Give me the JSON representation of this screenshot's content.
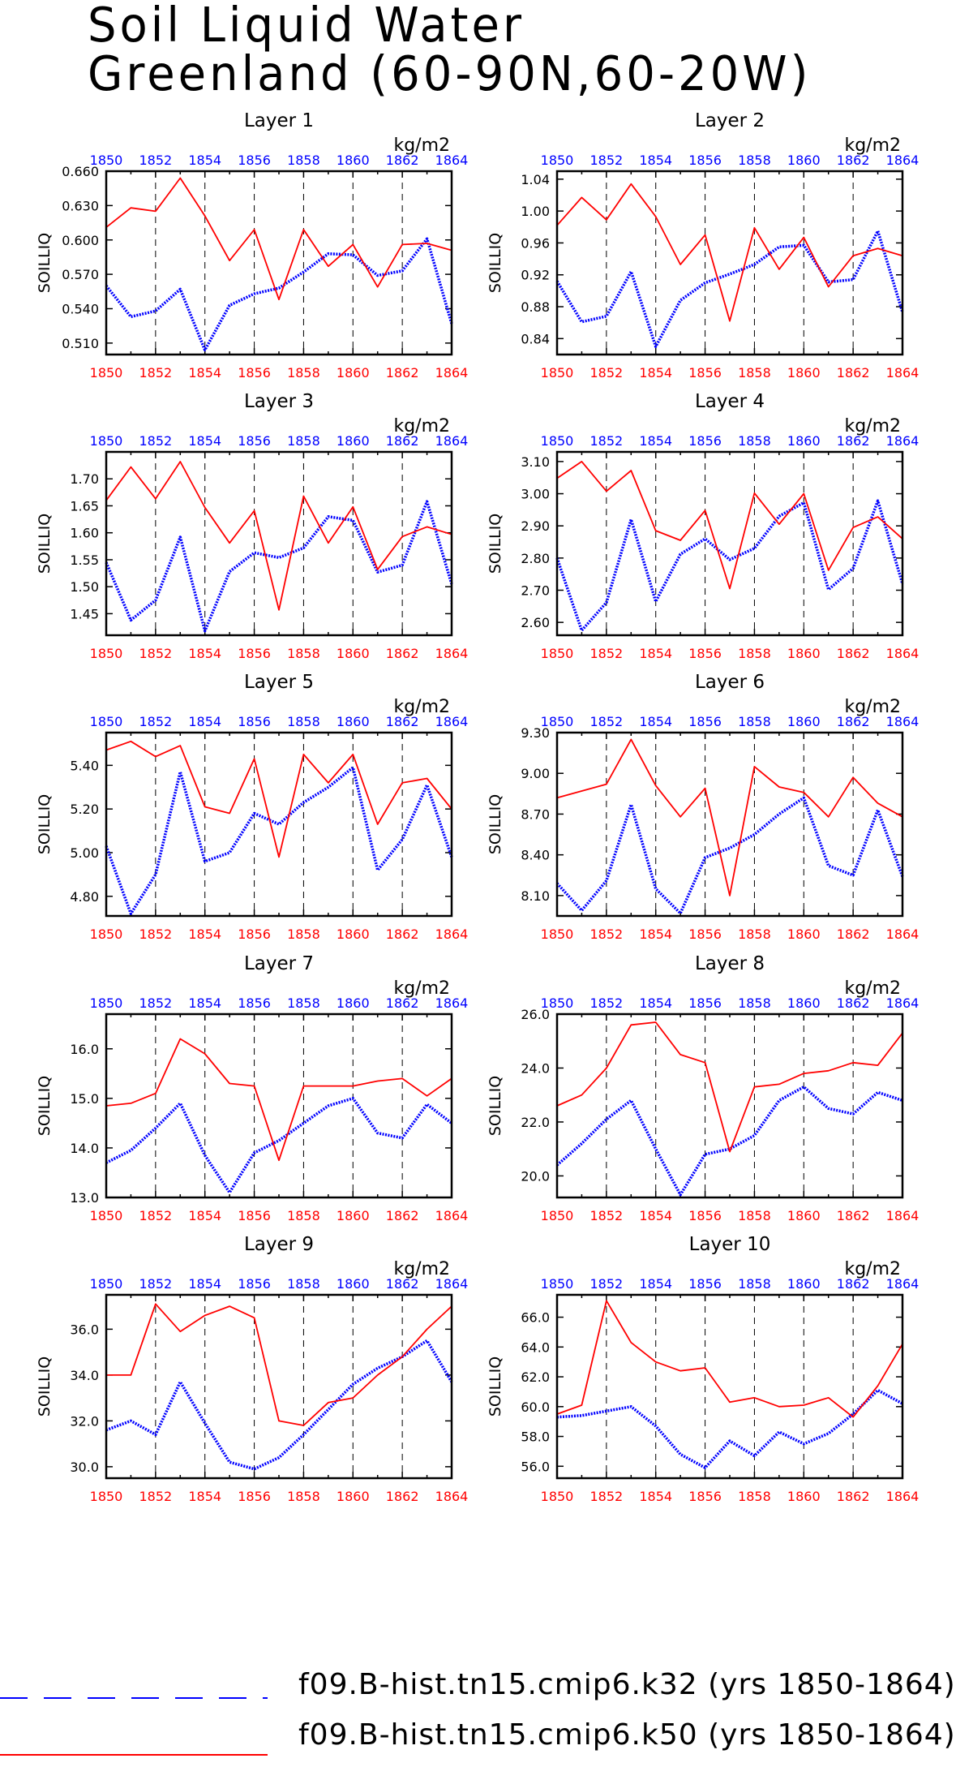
{
  "title": [
    "Soil Liquid Water",
    "Greenland (60-90N,60-20W)"
  ],
  "units": "kg/m2",
  "legend": [
    {
      "label": "f09.B-hist.tn15.cmip6.k32 (yrs 1850-1864)",
      "color": "#0000ff",
      "style": "dashed"
    },
    {
      "label": "f09.B-hist.tn15.cmip6.k50 (yrs 1850-1864)",
      "color": "#ff0000",
      "style": "solid"
    }
  ],
  "colors": {
    "blue_series": "#0000ff",
    "red_series": "#ff0000",
    "bottom_tick_labels": "#ff0000",
    "top_tick_labels": "#0000ff"
  },
  "chart_data": [
    {
      "type": "line",
      "title": "Layer 1",
      "ylabel": "SOILLIQ",
      "units": "kg/m2",
      "x": [
        1850,
        1851,
        1852,
        1853,
        1854,
        1855,
        1856,
        1857,
        1858,
        1859,
        1860,
        1861,
        1862,
        1863,
        1864
      ],
      "xticks": [
        1850,
        1852,
        1854,
        1856,
        1858,
        1860,
        1862,
        1864
      ],
      "xlim": [
        1850,
        1864
      ],
      "ylim": [
        0.5,
        0.66
      ],
      "yticks": [
        0.51,
        0.54,
        0.57,
        0.6,
        0.63,
        0.66
      ],
      "ytick_labels": [
        "0.510",
        "0.540",
        "0.570",
        "0.600",
        "0.630",
        "0.660"
      ],
      "series": [
        {
          "name": "f09.B-hist.tn15.cmip6.k32",
          "values": [
            0.56,
            0.533,
            0.538,
            0.557,
            0.504,
            0.543,
            0.553,
            0.558,
            0.572,
            0.588,
            0.587,
            0.569,
            0.573,
            0.601,
            0.527
          ]
        },
        {
          "name": "f09.B-hist.tn15.cmip6.k50",
          "values": [
            0.611,
            0.628,
            0.625,
            0.654,
            0.621,
            0.582,
            0.609,
            0.548,
            0.609,
            0.577,
            0.596,
            0.559,
            0.596,
            0.597,
            0.591
          ]
        }
      ]
    },
    {
      "type": "line",
      "title": "Layer 2",
      "ylabel": "SOILLIQ",
      "units": "kg/m2",
      "x": [
        1850,
        1851,
        1852,
        1853,
        1854,
        1855,
        1856,
        1857,
        1858,
        1859,
        1860,
        1861,
        1862,
        1863,
        1864
      ],
      "xticks": [
        1850,
        1852,
        1854,
        1856,
        1858,
        1860,
        1862,
        1864
      ],
      "xlim": [
        1850,
        1864
      ],
      "ylim": [
        0.82,
        1.05
      ],
      "yticks": [
        0.84,
        0.88,
        0.92,
        0.96,
        1.0,
        1.04
      ],
      "ytick_labels": [
        "0.84",
        "0.88",
        "0.92",
        "0.96",
        "1.00",
        "1.04"
      ],
      "series": [
        {
          "name": "f09.B-hist.tn15.cmip6.k32",
          "values": [
            0.912,
            0.861,
            0.868,
            0.924,
            0.83,
            0.888,
            0.91,
            0.921,
            0.933,
            0.955,
            0.957,
            0.911,
            0.914,
            0.975,
            0.873
          ]
        },
        {
          "name": "f09.B-hist.tn15.cmip6.k50",
          "values": [
            0.982,
            1.017,
            0.989,
            1.034,
            0.993,
            0.933,
            0.97,
            0.862,
            0.979,
            0.927,
            0.967,
            0.905,
            0.944,
            0.953,
            0.944
          ]
        }
      ]
    },
    {
      "type": "line",
      "title": "Layer 3",
      "ylabel": "SOILLIQ",
      "units": "kg/m2",
      "x": [
        1850,
        1851,
        1852,
        1853,
        1854,
        1855,
        1856,
        1857,
        1858,
        1859,
        1860,
        1861,
        1862,
        1863,
        1864
      ],
      "xticks": [
        1850,
        1852,
        1854,
        1856,
        1858,
        1860,
        1862,
        1864
      ],
      "xlim": [
        1850,
        1864
      ],
      "ylim": [
        1.41,
        1.75
      ],
      "yticks": [
        1.45,
        1.5,
        1.55,
        1.6,
        1.65,
        1.7
      ],
      "ytick_labels": [
        "1.45",
        "1.50",
        "1.55",
        "1.60",
        "1.65",
        "1.70"
      ],
      "series": [
        {
          "name": "f09.B-hist.tn15.cmip6.k32",
          "values": [
            1.545,
            1.438,
            1.475,
            1.592,
            1.418,
            1.528,
            1.563,
            1.554,
            1.572,
            1.63,
            1.623,
            1.527,
            1.54,
            1.658,
            1.505
          ]
        },
        {
          "name": "f09.B-hist.tn15.cmip6.k50",
          "values": [
            1.66,
            1.722,
            1.663,
            1.732,
            1.647,
            1.581,
            1.641,
            1.457,
            1.668,
            1.581,
            1.648,
            1.532,
            1.593,
            1.611,
            1.597
          ]
        }
      ]
    },
    {
      "type": "line",
      "title": "Layer 4",
      "ylabel": "SOILLIQ",
      "units": "kg/m2",
      "x": [
        1850,
        1851,
        1852,
        1853,
        1854,
        1855,
        1856,
        1857,
        1858,
        1859,
        1860,
        1861,
        1862,
        1863,
        1864
      ],
      "xticks": [
        1850,
        1852,
        1854,
        1856,
        1858,
        1860,
        1862,
        1864
      ],
      "xlim": [
        1850,
        1864
      ],
      "ylim": [
        2.56,
        3.13
      ],
      "yticks": [
        2.6,
        2.7,
        2.8,
        2.9,
        3.0,
        3.1
      ],
      "ytick_labels": [
        "2.60",
        "2.70",
        "2.80",
        "2.90",
        "3.00",
        "3.10"
      ],
      "series": [
        {
          "name": "f09.B-hist.tn15.cmip6.k32",
          "values": [
            2.8,
            2.575,
            2.662,
            2.92,
            2.665,
            2.812,
            2.86,
            2.795,
            2.83,
            2.93,
            2.972,
            2.702,
            2.768,
            2.978,
            2.72
          ]
        },
        {
          "name": "f09.B-hist.tn15.cmip6.k50",
          "values": [
            3.048,
            3.1,
            3.008,
            3.072,
            2.885,
            2.855,
            2.948,
            2.705,
            3.002,
            2.905,
            3.0,
            2.762,
            2.895,
            2.928,
            2.86
          ]
        }
      ]
    },
    {
      "type": "line",
      "title": "Layer 5",
      "ylabel": "SOILLIQ",
      "units": "kg/m2",
      "x": [
        1850,
        1851,
        1852,
        1853,
        1854,
        1855,
        1856,
        1857,
        1858,
        1859,
        1860,
        1861,
        1862,
        1863,
        1864
      ],
      "xticks": [
        1850,
        1852,
        1854,
        1856,
        1858,
        1860,
        1862,
        1864
      ],
      "xlim": [
        1850,
        1864
      ],
      "ylim": [
        4.71,
        5.55
      ],
      "yticks": [
        4.8,
        5.0,
        5.2,
        5.4
      ],
      "ytick_labels": [
        "4.80",
        "5.00",
        "5.20",
        "5.40"
      ],
      "series": [
        {
          "name": "f09.B-hist.tn15.cmip6.k32",
          "values": [
            5.03,
            4.72,
            4.9,
            5.37,
            4.96,
            5.0,
            5.18,
            5.13,
            5.23,
            5.3,
            5.39,
            4.92,
            5.06,
            5.31,
            4.98
          ]
        },
        {
          "name": "f09.B-hist.tn15.cmip6.k50",
          "values": [
            5.47,
            5.51,
            5.44,
            5.49,
            5.21,
            5.18,
            5.43,
            4.98,
            5.45,
            5.32,
            5.45,
            5.13,
            5.32,
            5.34,
            5.2
          ]
        }
      ]
    },
    {
      "type": "line",
      "title": "Layer 6",
      "ylabel": "SOILLIQ",
      "units": "kg/m2",
      "x": [
        1850,
        1851,
        1852,
        1853,
        1854,
        1855,
        1856,
        1857,
        1858,
        1859,
        1860,
        1861,
        1862,
        1863,
        1864
      ],
      "xticks": [
        1850,
        1852,
        1854,
        1856,
        1858,
        1860,
        1862,
        1864
      ],
      "xlim": [
        1850,
        1864
      ],
      "ylim": [
        7.95,
        9.3
      ],
      "yticks": [
        8.1,
        8.4,
        8.7,
        9.0,
        9.3
      ],
      "ytick_labels": [
        "8.10",
        "8.40",
        "8.70",
        "9.00",
        "9.30"
      ],
      "series": [
        {
          "name": "f09.B-hist.tn15.cmip6.k32",
          "values": [
            8.19,
            7.99,
            8.21,
            8.77,
            8.15,
            7.97,
            8.38,
            8.45,
            8.55,
            8.7,
            8.82,
            8.32,
            8.25,
            8.73,
            8.24
          ]
        },
        {
          "name": "f09.B-hist.tn15.cmip6.k50",
          "values": [
            8.82,
            8.87,
            8.92,
            9.25,
            8.91,
            8.68,
            8.89,
            8.1,
            9.05,
            8.9,
            8.86,
            8.68,
            8.97,
            8.78,
            8.68
          ]
        }
      ]
    },
    {
      "type": "line",
      "title": "Layer 7",
      "ylabel": "SOILLIQ",
      "units": "kg/m2",
      "x": [
        1850,
        1851,
        1852,
        1853,
        1854,
        1855,
        1856,
        1857,
        1858,
        1859,
        1860,
        1861,
        1862,
        1863,
        1864
      ],
      "xticks": [
        1850,
        1852,
        1854,
        1856,
        1858,
        1860,
        1862,
        1864
      ],
      "xlim": [
        1850,
        1864
      ],
      "ylim": [
        13.0,
        16.7
      ],
      "yticks": [
        13.0,
        14.0,
        15.0,
        16.0
      ],
      "ytick_labels": [
        "13.0",
        "14.0",
        "15.0",
        "16.0"
      ],
      "series": [
        {
          "name": "f09.B-hist.tn15.cmip6.k32",
          "values": [
            13.7,
            13.95,
            14.4,
            14.9,
            13.85,
            13.1,
            13.9,
            14.15,
            14.5,
            14.85,
            15.0,
            14.3,
            14.2,
            14.88,
            14.5
          ]
        },
        {
          "name": "f09.B-hist.tn15.cmip6.k50",
          "values": [
            14.85,
            14.9,
            15.1,
            16.2,
            15.9,
            15.3,
            15.25,
            13.75,
            15.25,
            15.25,
            15.25,
            15.35,
            15.4,
            15.05,
            15.4
          ]
        }
      ]
    },
    {
      "type": "line",
      "title": "Layer 8",
      "ylabel": "SOILLIQ",
      "units": "kg/m2",
      "x": [
        1850,
        1851,
        1852,
        1853,
        1854,
        1855,
        1856,
        1857,
        1858,
        1859,
        1860,
        1861,
        1862,
        1863,
        1864
      ],
      "xticks": [
        1850,
        1852,
        1854,
        1856,
        1858,
        1860,
        1862,
        1864
      ],
      "xlim": [
        1850,
        1864
      ],
      "ylim": [
        19.2,
        26.0
      ],
      "yticks": [
        20.0,
        22.0,
        24.0,
        26.0
      ],
      "ytick_labels": [
        "20.0",
        "22.0",
        "24.0",
        "26.0"
      ],
      "series": [
        {
          "name": "f09.B-hist.tn15.cmip6.k32",
          "values": [
            20.4,
            21.2,
            22.1,
            22.8,
            21.0,
            19.3,
            20.8,
            21.0,
            21.5,
            22.8,
            23.3,
            22.5,
            22.3,
            23.1,
            22.8
          ]
        },
        {
          "name": "f09.B-hist.tn15.cmip6.k50",
          "values": [
            22.6,
            23.0,
            24.0,
            25.6,
            25.7,
            24.5,
            24.2,
            20.9,
            23.3,
            23.4,
            23.8,
            23.9,
            24.2,
            24.1,
            25.3
          ]
        }
      ]
    },
    {
      "type": "line",
      "title": "Layer 9",
      "ylabel": "SOILLIQ",
      "units": "kg/m2",
      "x": [
        1850,
        1851,
        1852,
        1853,
        1854,
        1855,
        1856,
        1857,
        1858,
        1859,
        1860,
        1861,
        1862,
        1863,
        1864
      ],
      "xticks": [
        1850,
        1852,
        1854,
        1856,
        1858,
        1860,
        1862,
        1864
      ],
      "xlim": [
        1850,
        1864
      ],
      "ylim": [
        29.5,
        37.5
      ],
      "yticks": [
        30.0,
        32.0,
        34.0,
        36.0
      ],
      "ytick_labels": [
        "30.0",
        "32.0",
        "34.0",
        "36.0"
      ],
      "series": [
        {
          "name": "f09.B-hist.tn15.cmip6.k32",
          "values": [
            31.6,
            32.0,
            31.4,
            33.7,
            31.9,
            30.2,
            29.9,
            30.4,
            31.4,
            32.5,
            33.6,
            34.3,
            34.8,
            35.5,
            33.7
          ]
        },
        {
          "name": "f09.B-hist.tn15.cmip6.k50",
          "values": [
            34.0,
            34.0,
            37.1,
            35.9,
            36.6,
            37.0,
            36.5,
            32.0,
            31.8,
            32.8,
            33.0,
            34.0,
            34.8,
            36.0,
            37.0
          ]
        }
      ]
    },
    {
      "type": "line",
      "title": "Layer 10",
      "ylabel": "SOILLIQ",
      "units": "kg/m2",
      "x": [
        1850,
        1851,
        1852,
        1853,
        1854,
        1855,
        1856,
        1857,
        1858,
        1859,
        1860,
        1861,
        1862,
        1863,
        1864
      ],
      "xticks": [
        1850,
        1852,
        1854,
        1856,
        1858,
        1860,
        1862,
        1864
      ],
      "xlim": [
        1850,
        1864
      ],
      "ylim": [
        55.2,
        67.5
      ],
      "yticks": [
        56.0,
        58.0,
        60.0,
        62.0,
        64.0,
        66.0
      ],
      "ytick_labels": [
        "56.0",
        "58.0",
        "60.0",
        "62.0",
        "64.0",
        "66.0"
      ],
      "series": [
        {
          "name": "f09.B-hist.tn15.cmip6.k32",
          "values": [
            59.3,
            59.4,
            59.7,
            60.0,
            58.7,
            56.8,
            55.9,
            57.7,
            56.7,
            58.3,
            57.5,
            58.2,
            59.5,
            61.1,
            60.2
          ]
        },
        {
          "name": "f09.B-hist.tn15.cmip6.k50",
          "values": [
            59.5,
            60.1,
            67.1,
            64.3,
            63.0,
            62.4,
            62.6,
            60.3,
            60.6,
            60.0,
            60.1,
            60.6,
            59.3,
            61.4,
            64.2
          ]
        }
      ]
    }
  ]
}
